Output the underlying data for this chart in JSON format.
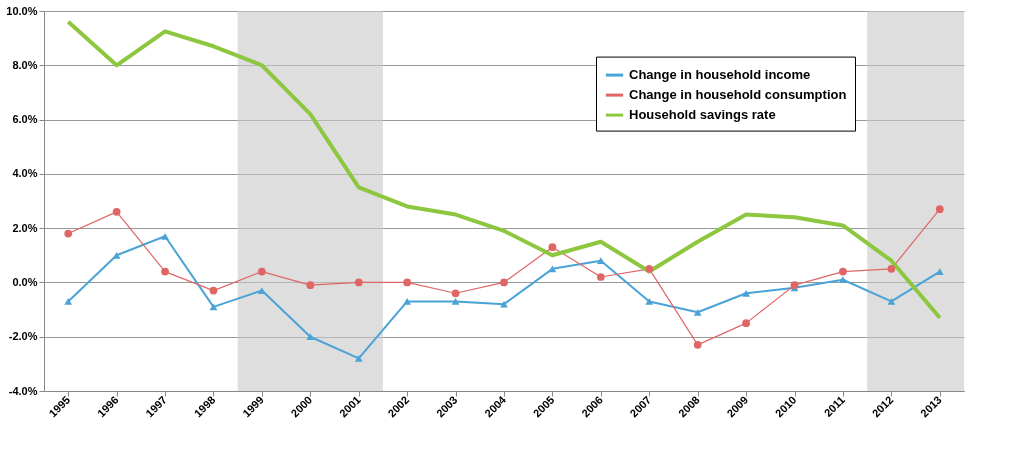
{
  "chart_data": {
    "type": "line",
    "categories": [
      "1995",
      "1996",
      "1997",
      "1998",
      "1999",
      "2000",
      "2001",
      "2002",
      "2003",
      "2004",
      "2005",
      "2006",
      "2007",
      "2008",
      "2009",
      "2010",
      "2011",
      "2012",
      "2013"
    ],
    "series": [
      {
        "name": "Change in household income",
        "color": "#4aa3d6",
        "marker": "triangle",
        "values": [
          -0.7,
          1.0,
          1.7,
          -0.9,
          -0.3,
          -2.0,
          -2.8,
          -0.7,
          -0.7,
          -0.8,
          0.5,
          0.8,
          -0.7,
          -1.1,
          -0.4,
          -0.2,
          0.1,
          -0.7,
          0.4
        ]
      },
      {
        "name": "Change in household consumption",
        "color": "#e06666",
        "marker": "circle",
        "values": [
          1.8,
          2.6,
          0.4,
          -0.3,
          0.4,
          -0.1,
          0.0,
          0.0,
          -0.4,
          0.0,
          1.3,
          0.2,
          0.5,
          -2.3,
          -1.5,
          -0.1,
          0.4,
          0.5,
          2.7
        ]
      },
      {
        "name": "Household savings rate",
        "color": "#8dc63f",
        "marker": "none",
        "values": [
          9.6,
          8.0,
          9.25,
          8.7,
          8.0,
          6.2,
          3.5,
          2.8,
          2.5,
          1.9,
          1.0,
          1.5,
          0.4,
          1.5,
          2.5,
          2.4,
          2.1,
          0.8,
          -1.3
        ]
      }
    ],
    "ylim": [
      -4,
      10
    ],
    "yticks": [
      {
        "value": -4,
        "label": "-4.0%"
      },
      {
        "value": -2,
        "label": "-2.0%"
      },
      {
        "value": 0,
        "label": "0.0%"
      },
      {
        "value": 2,
        "label": "2.0%"
      },
      {
        "value": 4,
        "label": "4.0%"
      },
      {
        "value": 6,
        "label": "6.0%"
      },
      {
        "value": 8,
        "label": "8.0%"
      },
      {
        "value": 10,
        "label": "10.0%"
      }
    ],
    "bands": [
      {
        "axis": "x",
        "from": "1999",
        "to": "2001",
        "color": "#c8c8c8"
      },
      {
        "axis": "x",
        "from": "2012",
        "to": "2013",
        "color": "#c8c8c8"
      }
    ],
    "grid": "y",
    "legend": "top right"
  }
}
